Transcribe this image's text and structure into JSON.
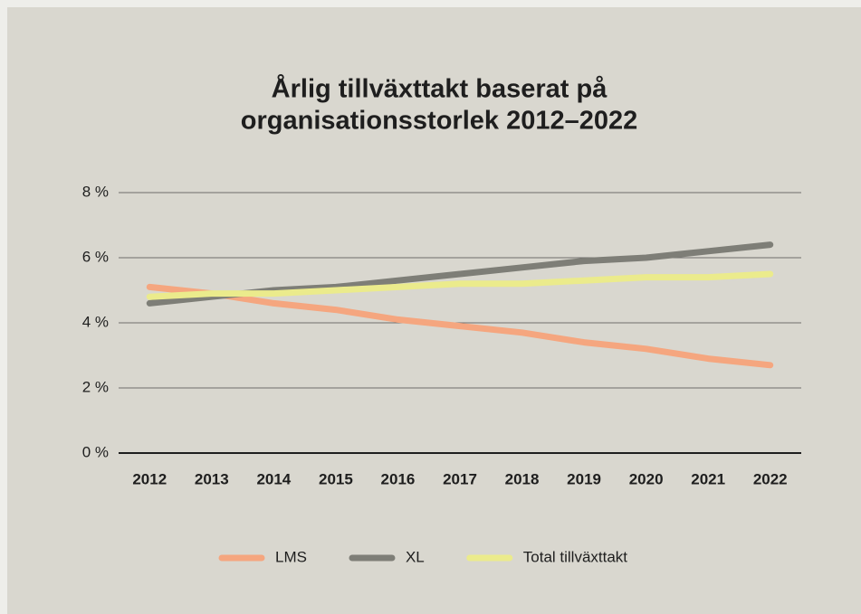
{
  "chart_data": {
    "type": "line",
    "title": [
      "Årlig tillväxttakt baserat på",
      "organisationsstorlek 2012–2022"
    ],
    "categories": [
      "2012",
      "2013",
      "2014",
      "2015",
      "2016",
      "2017",
      "2018",
      "2019",
      "2020",
      "2021",
      "2022"
    ],
    "series": [
      {
        "name": "LMS",
        "color": "#f5a67f",
        "values": [
          5.1,
          4.9,
          4.6,
          4.4,
          4.1,
          3.9,
          3.7,
          3.4,
          3.2,
          2.9,
          2.7
        ]
      },
      {
        "name": "XL",
        "color": "#7e7e77",
        "values": [
          4.6,
          4.8,
          5.0,
          5.1,
          5.3,
          5.5,
          5.7,
          5.9,
          6.0,
          6.2,
          6.4
        ]
      },
      {
        "name": "Total tillväxttakt",
        "color": "#ebeb8c",
        "values": [
          4.8,
          4.9,
          4.9,
          5.0,
          5.1,
          5.2,
          5.2,
          5.3,
          5.4,
          5.4,
          5.5
        ]
      }
    ],
    "ylim": [
      0,
      8
    ],
    "yticks": [
      {
        "value": 0,
        "label": "0 %"
      },
      {
        "value": 2,
        "label": "2 %"
      },
      {
        "value": 4,
        "label": "4 %"
      },
      {
        "value": 6,
        "label": "6 %"
      },
      {
        "value": 8,
        "label": "8 %"
      }
    ],
    "grid": true,
    "legend": "bottom"
  }
}
